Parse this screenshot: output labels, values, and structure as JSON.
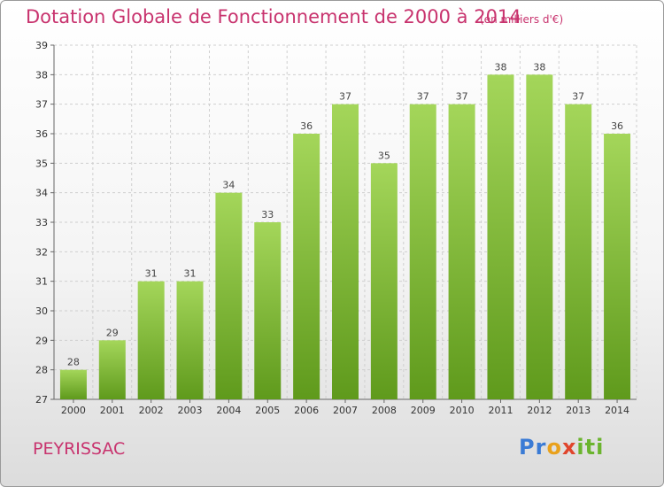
{
  "title": "Dotation Globale de Fonctionnement de 2000 à 2014",
  "unit_note": "(en milliers d'€)",
  "commune": "PEYRISSAC",
  "logo": {
    "letters": [
      "Pr",
      "o",
      "x",
      "iti"
    ]
  },
  "colors": {
    "bar_top": "#a4d65a",
    "bar_bottom": "#5f9a1c",
    "title": "#c8336e",
    "grid": "#cfcfcf"
  },
  "chart_data": {
    "type": "bar",
    "categories": [
      "2000",
      "2001",
      "2002",
      "2003",
      "2004",
      "2005",
      "2006",
      "2007",
      "2008",
      "2009",
      "2010",
      "2011",
      "2012",
      "2013",
      "2014"
    ],
    "values": [
      28,
      29,
      31,
      31,
      34,
      33,
      36,
      37,
      35,
      37,
      37,
      38,
      38,
      37,
      36
    ],
    "title": "Dotation Globale de Fonctionnement de 2000 à 2014",
    "xlabel": "",
    "ylabel": "",
    "ylim": [
      27,
      39
    ],
    "yticks": [
      27,
      28,
      29,
      30,
      31,
      32,
      33,
      34,
      35,
      36,
      37,
      38,
      39
    ],
    "grid": true,
    "data_labels": true
  }
}
